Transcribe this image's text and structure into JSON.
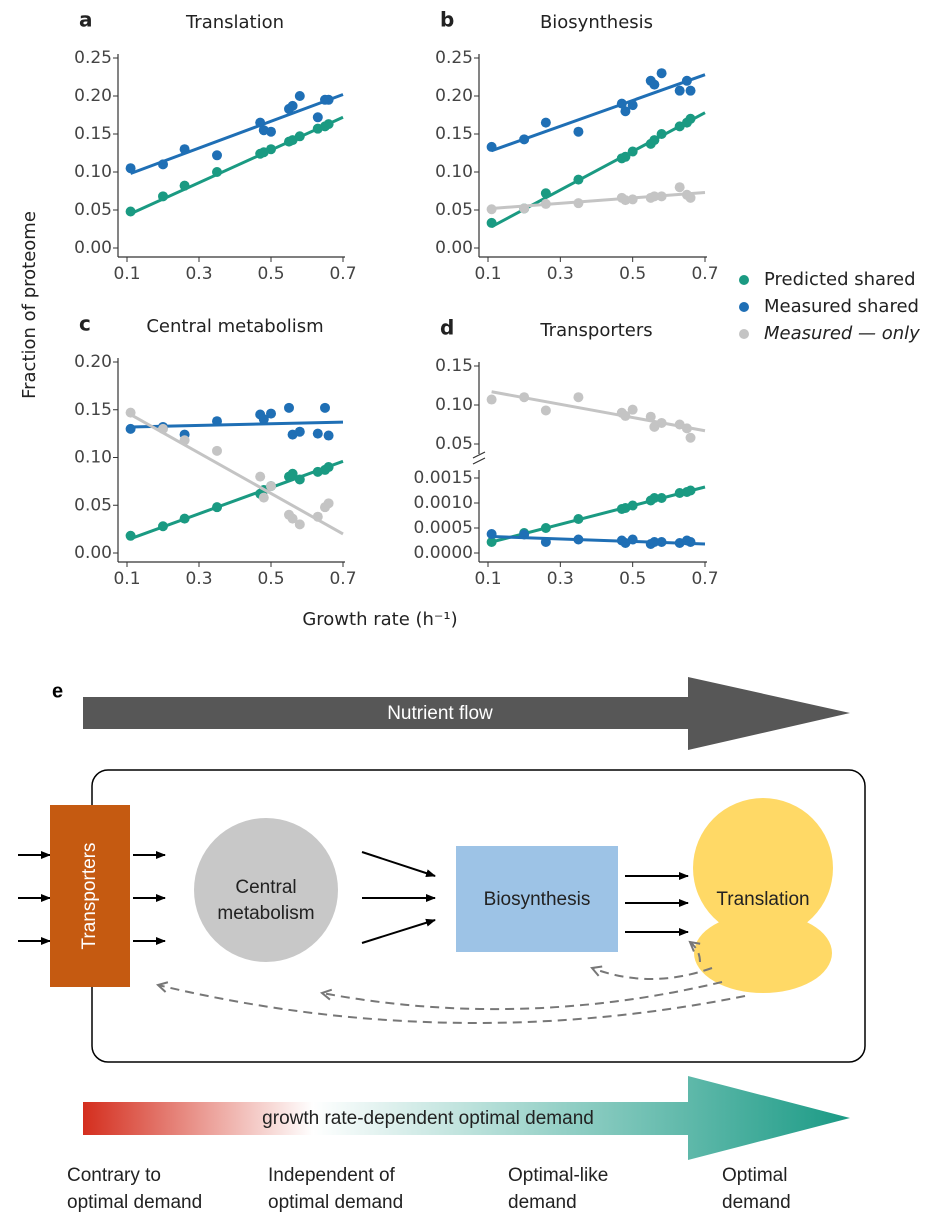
{
  "figure": {
    "ylabel": "Fraction of proteome",
    "xlabel": "Growth rate (h⁻¹)"
  },
  "chart_data": [
    {
      "type": "scatter",
      "panel": "a",
      "title": "Translation",
      "x": [
        0.11,
        0.2,
        0.26,
        0.35,
        0.47,
        0.48,
        0.5,
        0.55,
        0.56,
        0.58,
        0.63,
        0.65,
        0.66
      ],
      "fit_x": [
        0.11,
        0.7
      ],
      "series": [
        {
          "name": "Predicted shared",
          "color": "#1a9a82",
          "values": [
            0.048,
            0.068,
            0.082,
            0.1,
            0.124,
            0.126,
            0.13,
            0.14,
            0.142,
            0.147,
            0.157,
            0.16,
            0.163
          ],
          "fit": [
            0.045,
            0.172
          ]
        },
        {
          "name": "Measured shared",
          "color": "#1f6fb5",
          "values": [
            0.105,
            0.11,
            0.13,
            0.122,
            0.165,
            0.155,
            0.153,
            0.183,
            0.187,
            0.2,
            0.172,
            0.195,
            0.195
          ],
          "fit": [
            0.098,
            0.202
          ]
        }
      ],
      "xlim": [
        0.1,
        0.7
      ],
      "xticks": [
        0.1,
        0.3,
        0.5,
        0.7
      ],
      "ylim": [
        0,
        0.25
      ],
      "yticks": [
        {
          "value": 0,
          "label": "0.00"
        },
        0.05,
        {
          "value": 0.1,
          "label": "0.10"
        },
        0.15,
        {
          "value": 0.2,
          "label": "0.20"
        },
        0.25
      ]
    },
    {
      "type": "scatter",
      "panel": "b",
      "title": "Biosynthesis",
      "x": [
        0.11,
        0.2,
        0.26,
        0.35,
        0.47,
        0.48,
        0.5,
        0.55,
        0.56,
        0.58,
        0.63,
        0.65,
        0.66
      ],
      "fit_x": [
        0.11,
        0.7
      ],
      "series": [
        {
          "name": "Predicted shared",
          "color": "#1a9a82",
          "values": [
            0.033,
            0.052,
            0.072,
            0.09,
            0.118,
            0.12,
            0.127,
            0.137,
            0.142,
            0.15,
            0.16,
            0.165,
            0.17
          ],
          "fit": [
            0.028,
            0.178
          ]
        },
        {
          "name": "Measured shared",
          "color": "#1f6fb5",
          "values": [
            0.133,
            0.143,
            0.165,
            0.153,
            0.19,
            0.18,
            0.188,
            0.22,
            0.215,
            0.23,
            0.207,
            0.22,
            0.207
          ],
          "fit": [
            0.128,
            0.228
          ]
        },
        {
          "name": "Measured — only",
          "color": "#c4c4c4",
          "values": [
            0.051,
            0.052,
            0.058,
            0.059,
            0.066,
            0.063,
            0.064,
            0.066,
            0.068,
            0.068,
            0.08,
            0.07,
            0.066
          ],
          "fit": [
            0.052,
            0.073
          ]
        }
      ],
      "xlim": [
        0.1,
        0.7
      ],
      "xticks": [
        0.1,
        0.3,
        0.5,
        0.7
      ],
      "ylim": [
        0,
        0.25
      ],
      "yticks": [
        {
          "value": 0,
          "label": "0.00"
        },
        0.05,
        {
          "value": 0.1,
          "label": "0.10"
        },
        0.15,
        {
          "value": 0.2,
          "label": "0.20"
        },
        0.25
      ]
    },
    {
      "type": "scatter",
      "panel": "c",
      "title": "Central metabolism",
      "x": [
        0.11,
        0.2,
        0.26,
        0.35,
        0.47,
        0.48,
        0.5,
        0.55,
        0.56,
        0.58,
        0.63,
        0.65,
        0.66
      ],
      "fit_x": [
        0.11,
        0.7
      ],
      "series": [
        {
          "name": "Predicted shared",
          "color": "#1a9a82",
          "values": [
            0.018,
            0.028,
            0.036,
            0.048,
            0.062,
            0.066,
            0.07,
            0.08,
            0.083,
            0.077,
            0.085,
            0.087,
            0.09
          ],
          "fit": [
            0.015,
            0.096
          ]
        },
        {
          "name": "Measured shared",
          "color": "#1f6fb5",
          "values": [
            0.13,
            0.132,
            0.124,
            0.138,
            0.145,
            0.14,
            0.146,
            0.152,
            0.124,
            0.127,
            0.125,
            0.152,
            0.123
          ],
          "fit": [
            0.132,
            0.137
          ]
        },
        {
          "name": "Measured — only",
          "color": "#c4c4c4",
          "values": [
            0.147,
            0.13,
            0.118,
            0.107,
            0.08,
            0.058,
            0.07,
            0.04,
            0.036,
            0.03,
            0.038,
            0.048,
            0.052
          ],
          "fit": [
            0.145,
            0.02
          ]
        }
      ],
      "xlim": [
        0.1,
        0.7
      ],
      "xticks": [
        0.1,
        0.3,
        0.5,
        0.7
      ],
      "ylim": [
        0,
        0.2
      ],
      "yticks": [
        {
          "value": 0,
          "label": "0.00"
        },
        0.05,
        {
          "value": 0.1,
          "label": "0.10"
        },
        0.15,
        {
          "value": 0.2,
          "label": "0.20"
        }
      ]
    },
    {
      "type": "scatter",
      "panel": "d",
      "title": "Transporters",
      "x": [
        0.11,
        0.2,
        0.26,
        0.35,
        0.47,
        0.48,
        0.5,
        0.55,
        0.56,
        0.58,
        0.63,
        0.65,
        0.66
      ],
      "fit_x": [
        0.11,
        0.7
      ],
      "series": [
        {
          "name": "Measured — only",
          "color": "#c4c4c4",
          "values": [
            0.107,
            0.11,
            0.093,
            0.11,
            0.09,
            0.086,
            0.094,
            0.085,
            0.072,
            0.077,
            0.075,
            0.07,
            0.058
          ],
          "fit": [
            0.117,
            0.067
          ]
        }
      ],
      "xlim": [
        0.1,
        0.7
      ],
      "ylim": [
        0.05,
        0.15
      ],
      "yticks": [
        0.05,
        {
          "value": 0.1,
          "label": "0.10"
        },
        0.15
      ]
    },
    {
      "type": "scatter",
      "x": [
        0.11,
        0.2,
        0.26,
        0.35,
        0.47,
        0.48,
        0.5,
        0.55,
        0.56,
        0.58,
        0.63,
        0.65,
        0.66
      ],
      "fit_x": [
        0.11,
        0.7
      ],
      "series": [
        {
          "name": "Predicted shared",
          "color": "#1a9a82",
          "values": [
            0.00022,
            0.0004,
            0.0005,
            0.00068,
            0.00088,
            0.0009,
            0.00095,
            0.00105,
            0.0011,
            0.0011,
            0.0012,
            0.00122,
            0.00125
          ],
          "fit": [
            0.00022,
            0.00132
          ]
        },
        {
          "name": "Measured shared",
          "color": "#1f6fb5",
          "values": [
            0.00038,
            0.00037,
            0.00022,
            0.00027,
            0.00025,
            0.0002,
            0.00027,
            0.00018,
            0.00022,
            0.00022,
            0.0002,
            0.00025,
            0.00022
          ],
          "fit": [
            0.00033,
            0.00018
          ]
        }
      ],
      "xlim": [
        0.1,
        0.7
      ],
      "xticks": [
        0.1,
        0.3,
        0.5,
        0.7
      ],
      "ylim": [
        0,
        0.0015
      ],
      "yticks": [
        {
          "value": 0,
          "label": "0.0000"
        },
        {
          "value": 0.0005,
          "label": "0.0005"
        },
        {
          "value": 0.001,
          "label": "0.0010"
        },
        {
          "value": 0.0015,
          "label": "0.0015"
        }
      ]
    }
  ],
  "diagram": {
    "label": "e",
    "flow": "Nutrient flow",
    "nodes": {
      "transporters": "Transporters",
      "central": [
        "Central",
        "metabolism"
      ],
      "biosynthesis": "Biosynthesis",
      "translation": "Translation"
    },
    "scale": "growth rate-dependent optimal demand",
    "demand_labels": [
      [
        "Contrary to",
        "optimal demand"
      ],
      [
        "Independent of",
        "optimal demand"
      ],
      [
        "Optimal-like",
        "demand"
      ],
      [
        "Optimal",
        "demand"
      ]
    ]
  }
}
